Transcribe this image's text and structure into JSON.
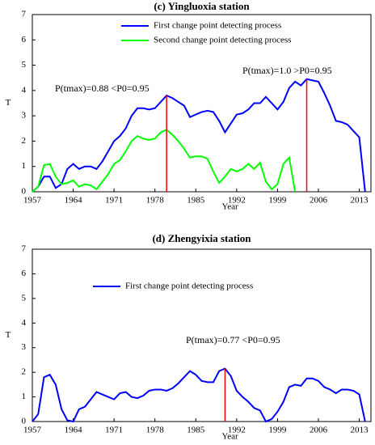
{
  "chart_data": [
    {
      "type": "line",
      "title": "(c) Yingluoxia station",
      "xlabel": "Year",
      "ylabel": "T",
      "x": [
        1957,
        1958,
        1959,
        1960,
        1961,
        1962,
        1963,
        1964,
        1965,
        1966,
        1967,
        1968,
        1969,
        1970,
        1971,
        1972,
        1973,
        1974,
        1975,
        1976,
        1977,
        1978,
        1979,
        1980,
        1981,
        1982,
        1983,
        1984,
        1985,
        1986,
        1987,
        1988,
        1989,
        1990,
        1991,
        1992,
        1993,
        1994,
        1995,
        1996,
        1997,
        1998,
        1999,
        2000,
        2001,
        2002,
        2003,
        2004,
        2005,
        2006,
        2007,
        2008,
        2009,
        2010,
        2011,
        2012,
        2013,
        2014
      ],
      "series": [
        {
          "name": "First change point detecting process",
          "color": "#0000ff",
          "values": [
            0,
            0.2,
            0.6,
            0.6,
            0.15,
            0.3,
            0.9,
            1.1,
            0.9,
            1.0,
            1.0,
            0.9,
            1.2,
            1.6,
            2.0,
            2.2,
            2.5,
            3.0,
            3.3,
            3.3,
            3.25,
            3.3,
            3.55,
            3.8,
            3.7,
            3.55,
            3.4,
            2.95,
            3.05,
            3.15,
            3.2,
            3.15,
            2.8,
            2.35,
            2.7,
            3.05,
            3.1,
            3.25,
            3.5,
            3.5,
            3.75,
            3.5,
            3.25,
            3.55,
            4.1,
            4.35,
            4.2,
            4.45,
            4.4,
            4.35,
            3.9,
            3.4,
            2.8,
            2.75,
            2.65,
            2.4,
            2.15,
            0
          ]
        },
        {
          "name": "Second change point detecting process",
          "color": "#00ff00",
          "values": [
            0,
            0.2,
            1.05,
            1.1,
            0.6,
            0.3,
            0.35,
            0.45,
            0.2,
            0.3,
            0.25,
            0.1,
            0.4,
            0.7,
            1.1,
            1.25,
            1.6,
            2.0,
            2.2,
            2.1,
            2.05,
            2.1,
            2.35,
            2.45,
            2.25,
            2.0,
            1.7,
            1.35,
            1.4,
            1.4,
            1.3,
            0.8,
            0.35,
            0.6,
            0.9,
            0.8,
            0.9,
            1.1,
            0.9,
            1.15,
            0.4,
            0.1,
            0.3,
            1.1,
            1.35,
            0,
            null,
            null,
            null,
            null,
            null,
            null,
            null,
            null,
            null,
            null,
            null,
            null
          ]
        }
      ],
      "vlines": [
        {
          "x": 1980,
          "y": 3.8
        },
        {
          "x": 2004,
          "y": 4.45
        }
      ],
      "vline_color": "#ff0000",
      "annotations": [
        "P(tmax)=0.88 <P0=0.95",
        "P(tmax)=1.0 >P0=0.95"
      ],
      "xlim": [
        1957,
        2015
      ],
      "xticks": [
        1957,
        1964,
        1971,
        1978,
        1985,
        1992,
        1999,
        2006,
        2013
      ],
      "ylim": [
        0,
        7
      ],
      "yticks": [
        0,
        1,
        2,
        3,
        4,
        5,
        6,
        7
      ]
    },
    {
      "type": "line",
      "title": "(d) Zhengyixia station",
      "xlabel": "Year",
      "ylabel": "T",
      "x": [
        1957,
        1958,
        1959,
        1960,
        1961,
        1962,
        1963,
        1964,
        1965,
        1966,
        1967,
        1968,
        1969,
        1970,
        1971,
        1972,
        1973,
        1974,
        1975,
        1976,
        1977,
        1978,
        1979,
        1980,
        1981,
        1982,
        1983,
        1984,
        1985,
        1986,
        1987,
        1988,
        1989,
        1990,
        1991,
        1992,
        1993,
        1994,
        1995,
        1996,
        1997,
        1998,
        1999,
        2000,
        2001,
        2002,
        2003,
        2004,
        2005,
        2006,
        2007,
        2008,
        2009,
        2010,
        2011,
        2012,
        2013,
        2014
      ],
      "series": [
        {
          "name": "First change point detecting process",
          "color": "#0000ff",
          "values": [
            0,
            0.3,
            1.8,
            1.9,
            1.5,
            0.5,
            0.05,
            0,
            0.5,
            0.6,
            0.9,
            1.2,
            1.1,
            1.0,
            0.9,
            1.15,
            1.2,
            1.0,
            0.95,
            1.05,
            1.25,
            1.3,
            1.3,
            1.25,
            1.35,
            1.55,
            1.8,
            2.05,
            1.9,
            1.65,
            1.6,
            1.6,
            2.05,
            2.15,
            1.85,
            1.25,
            1.0,
            0.8,
            0.55,
            0.45,
            0.0,
            0.1,
            0.4,
            0.8,
            1.4,
            1.5,
            1.45,
            1.75,
            1.75,
            1.65,
            1.4,
            1.3,
            1.15,
            1.3,
            1.3,
            1.25,
            1.1,
            0
          ]
        }
      ],
      "vlines": [
        {
          "x": 1990,
          "y": 2.15
        }
      ],
      "vline_color": "#ff0000",
      "annotations": [
        "P(tmax)=0.77 <P0=0.95"
      ],
      "xlim": [
        1957,
        2015
      ],
      "xticks": [
        1957,
        1964,
        1971,
        1978,
        1985,
        1992,
        1999,
        2006,
        2013
      ],
      "ylim": [
        0,
        7
      ],
      "yticks": [
        0,
        1,
        2,
        3,
        4,
        5,
        6,
        7
      ]
    }
  ]
}
